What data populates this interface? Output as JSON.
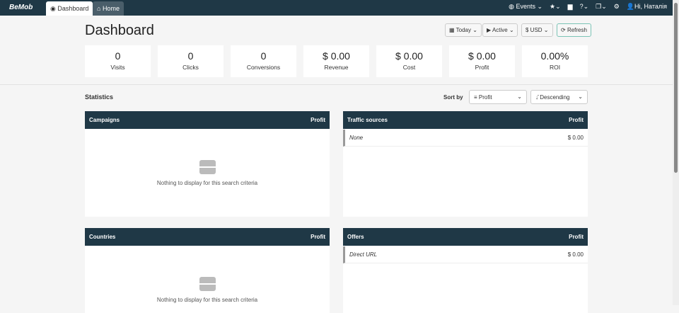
{
  "topbar": {
    "logo": "BeMob",
    "tabs": [
      {
        "label": "Dashboard",
        "icon": "dashboard-icon"
      },
      {
        "label": "Home",
        "icon": "home-icon"
      }
    ],
    "events": "Events",
    "user": "Hi, Наталія"
  },
  "page": {
    "title": "Dashboard"
  },
  "filters": {
    "date": "Today",
    "status": "Active",
    "currency": "$ USD",
    "refresh": "Refresh"
  },
  "stats": [
    {
      "value": "0",
      "label": "Visits"
    },
    {
      "value": "0",
      "label": "Clicks"
    },
    {
      "value": "0",
      "label": "Conversions"
    },
    {
      "value": "$ 0.00",
      "label": "Revenue"
    },
    {
      "value": "$ 0.00",
      "label": "Cost"
    },
    {
      "value": "$ 0.00",
      "label": "Profit"
    },
    {
      "value": "0.00%",
      "label": "ROI"
    }
  ],
  "statistics": {
    "title": "Statistics",
    "sort_label": "Sort by",
    "sort_field": "Profit",
    "sort_order": "Descending"
  },
  "panels": [
    {
      "title": "Campaigns",
      "col": "Profit",
      "empty": "Nothing to display for this search criteria"
    },
    {
      "title": "Traffic sources",
      "col": "Profit",
      "rows": [
        {
          "name": "None",
          "value": "$ 0.00"
        }
      ]
    },
    {
      "title": "Countries",
      "col": "Profit",
      "empty": "Nothing to display for this search criteria"
    },
    {
      "title": "Offers",
      "col": "Profit",
      "rows": [
        {
          "name": "Direct URL",
          "value": "$ 0.00"
        }
      ]
    }
  ]
}
